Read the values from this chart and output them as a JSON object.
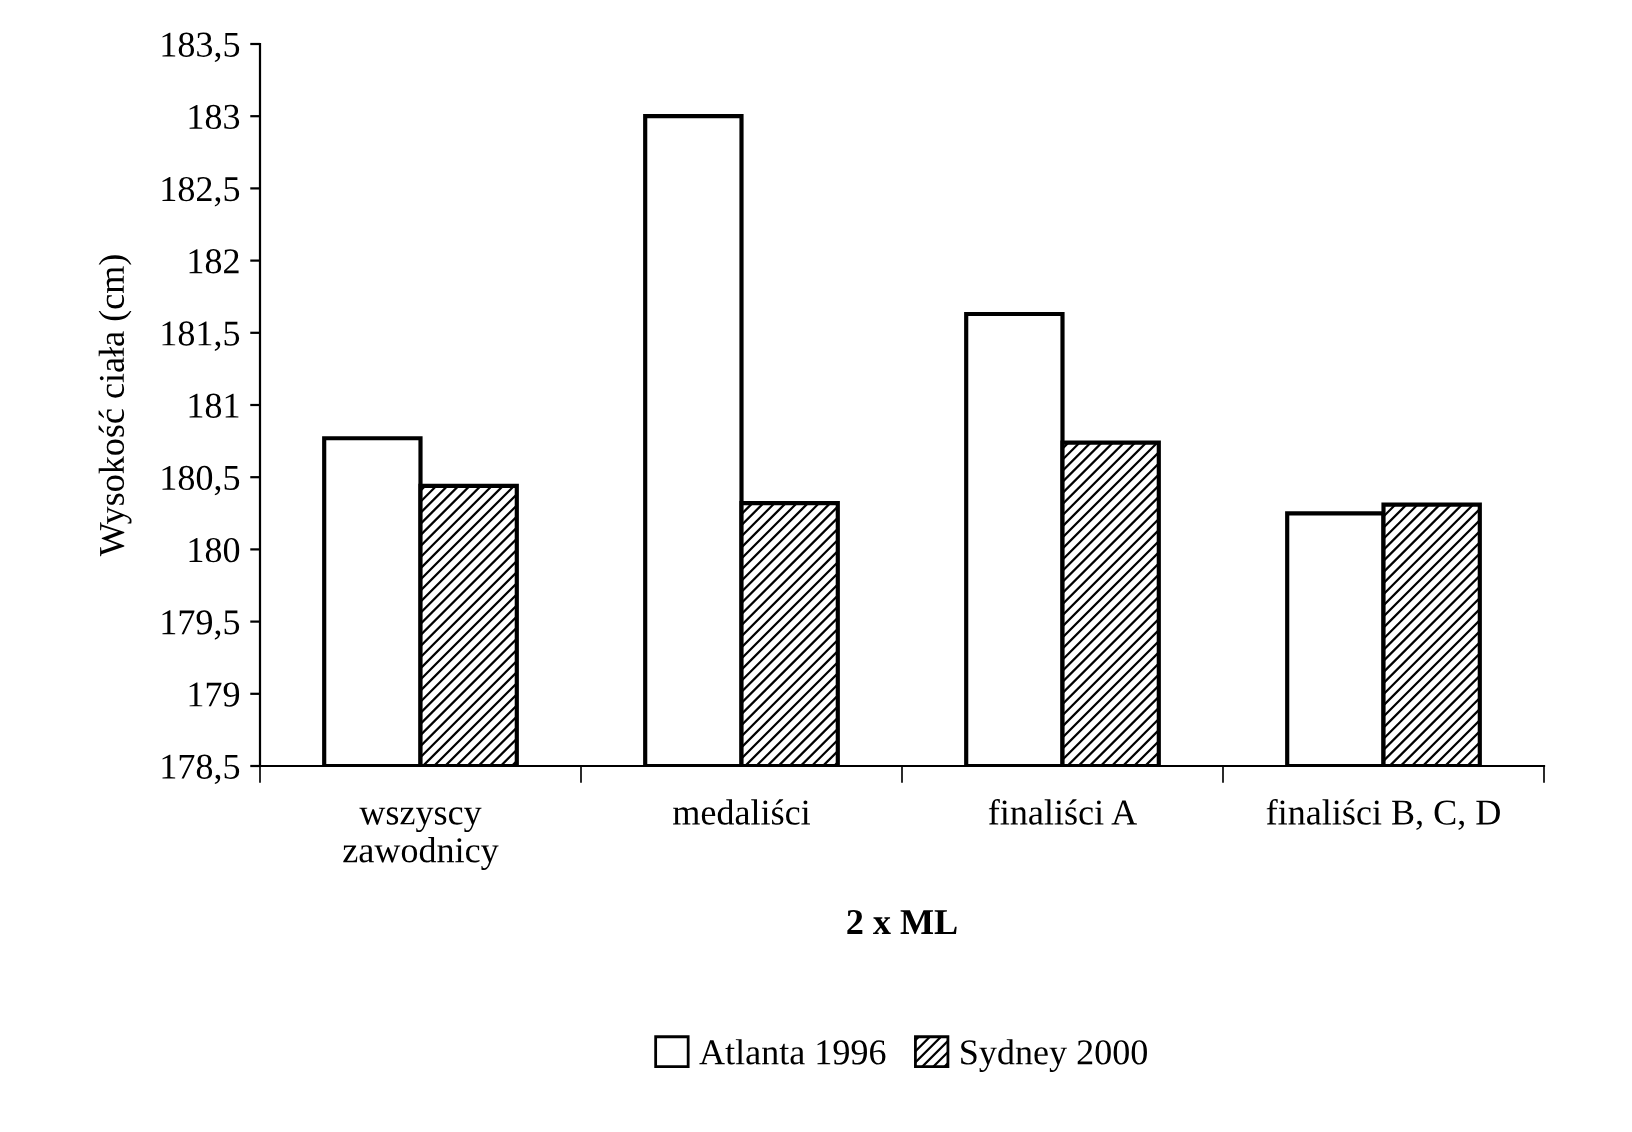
{
  "chart_data": {
    "type": "bar",
    "xlabel": "2 x ML",
    "ylabel": "Wysokość ciała (cm)",
    "categories": [
      "wszyscy\nzawodnicy",
      "medaliści",
      "finaliści A",
      "finaliści B, C, D"
    ],
    "series": [
      {
        "name": "Atlanta 1996",
        "color": "#ffffff",
        "values": [
          180.77,
          183.0,
          181.63,
          180.25
        ]
      },
      {
        "name": "Sydney 2000",
        "color": "#000000",
        "values": [
          180.44,
          180.32,
          180.74,
          180.31
        ]
      }
    ],
    "ylim": [
      178.5,
      183.5
    ],
    "yticks": [
      {
        "value": 178.5,
        "label": "178,5"
      },
      179,
      {
        "value": 179.5,
        "label": "179,5"
      },
      180,
      {
        "value": 180.5,
        "label": "180,5"
      },
      181,
      {
        "value": 181.5,
        "label": "181,5"
      },
      182,
      {
        "value": 182.5,
        "label": "182,5"
      },
      183,
      {
        "value": 183.5,
        "label": "183,5"
      }
    ],
    "grid": false,
    "legend": "bottom"
  }
}
